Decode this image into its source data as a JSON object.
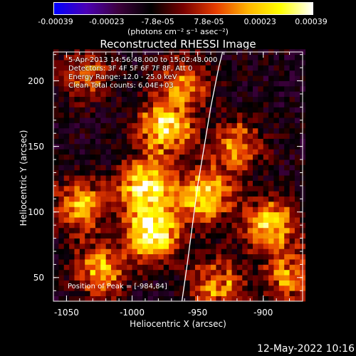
{
  "colorbar": {
    "ticks": [
      "-0.00039",
      "-0.00023",
      "-7.8e-05",
      "7.8e-05",
      "0.00023",
      "0.00039"
    ],
    "units_text": "(photons cm⁻² s⁻¹ asec⁻²)",
    "colormap": [
      "#0000ff",
      "#4b00b4",
      "#3c003c",
      "#000000",
      "#780000",
      "#e63c00",
      "#ffb400",
      "#ffff00",
      "#ffffff"
    ]
  },
  "chart_data": {
    "type": "heatmap",
    "title": "Reconstructed RHESSI Image",
    "xlabel": "Heliocentric X (arcsec)",
    "ylabel": "Heliocentric Y (arcsec)",
    "xlim": [
      -1060,
      -870
    ],
    "ylim": [
      32,
      222
    ],
    "x_ticks": [
      "-1050",
      "-1000",
      "-950",
      "-900"
    ],
    "y_ticks": [
      "50",
      "100",
      "150",
      "200"
    ],
    "x_tick_values": [
      -1050,
      -1000,
      -950,
      -900
    ],
    "y_tick_values": [
      50,
      100,
      150,
      200
    ],
    "peak_position": [
      -984,
      84
    ],
    "intensity_range": [
      -0.00039,
      0.00039
    ],
    "bright_sources": [
      {
        "x": -985,
        "y": 84,
        "intensity": 0.00039
      },
      {
        "x": -990,
        "y": 120,
        "intensity": 0.00033
      },
      {
        "x": -975,
        "y": 165,
        "intensity": 0.0003
      },
      {
        "x": -945,
        "y": 112,
        "intensity": 0.00028
      },
      {
        "x": -895,
        "y": 90,
        "intensity": 0.00026
      },
      {
        "x": -1040,
        "y": 105,
        "intensity": 0.0002
      },
      {
        "x": -1025,
        "y": 55,
        "intensity": 0.0002
      },
      {
        "x": -935,
        "y": 45,
        "intensity": 0.00018
      },
      {
        "x": -920,
        "y": 150,
        "intensity": 0.00016
      },
      {
        "x": -960,
        "y": 200,
        "intensity": 0.00014
      },
      {
        "x": -1035,
        "y": 205,
        "intensity": 0.00012
      },
      {
        "x": -880,
        "y": 50,
        "intensity": 0.00015
      }
    ],
    "limb_arc": [
      [
        -962,
        32
      ],
      [
        -958,
        60
      ],
      [
        -954,
        90
      ],
      [
        -950,
        120
      ],
      [
        -945,
        150
      ],
      [
        -940,
        180
      ],
      [
        -934,
        210
      ],
      [
        -931,
        222
      ]
    ]
  },
  "info": {
    "line1": "5-Apr-2013 14:56:48.000 to 15:02:48.000",
    "line2": "Detectors: 3F 4F 5F 6F 7F 8F, Att 0",
    "line3": "Energy Range: 12.0 - 25.0 keV",
    "line4": "Clean     Total counts: 6.04E+03",
    "peak": "Position of Peak = [-984,84]"
  },
  "timestamp": "12-May-2022 10:16"
}
